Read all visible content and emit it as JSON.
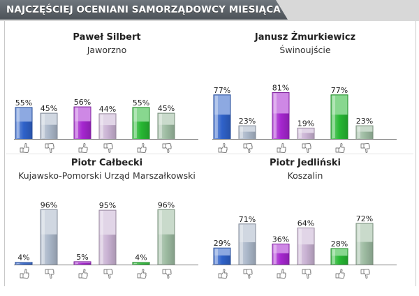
{
  "header": {
    "title": "NAJCZĘŚCIEJ OCENIANI SAMORZĄDOWCY MIESIĄCA"
  },
  "colors": {
    "blue": "#2f62c9",
    "purple": "#a526cf",
    "green": "#27b733",
    "pale_blue": "#aab7c9",
    "pale_purple": "#c9b2d3",
    "pale_green": "#9dbba1"
  },
  "icons": {
    "up": "thumb-up-icon",
    "down": "thumb-down-icon"
  },
  "chart_data": [
    {
      "type": "bar",
      "name": "Paweł Silbert",
      "place": "Jaworzno",
      "ylim": [
        0,
        100
      ],
      "groups": [
        {
          "color": "blue",
          "values": [
            55,
            45
          ]
        },
        {
          "color": "purple",
          "values": [
            56,
            44
          ]
        },
        {
          "color": "green",
          "values": [
            55,
            45
          ]
        }
      ]
    },
    {
      "type": "bar",
      "name": "Janusz Żmurkiewicz",
      "place": "Świnoujście",
      "ylim": [
        0,
        100
      ],
      "groups": [
        {
          "color": "blue",
          "values": [
            77,
            23
          ]
        },
        {
          "color": "purple",
          "values": [
            81,
            19
          ]
        },
        {
          "color": "green",
          "values": [
            77,
            23
          ]
        }
      ]
    },
    {
      "type": "bar",
      "name": "Piotr Całbecki",
      "place": "Kujawsko-Pomorski Urząd Marszałkowski",
      "ylim": [
        0,
        100
      ],
      "groups": [
        {
          "color": "blue",
          "values": [
            4,
            96
          ]
        },
        {
          "color": "purple",
          "values": [
            5,
            95
          ]
        },
        {
          "color": "green",
          "values": [
            4,
            96
          ]
        }
      ]
    },
    {
      "type": "bar",
      "name": "Piotr Jedliński",
      "place": "Koszalin",
      "ylim": [
        0,
        100
      ],
      "groups": [
        {
          "color": "blue",
          "values": [
            29,
            71
          ]
        },
        {
          "color": "purple",
          "values": [
            36,
            64
          ]
        },
        {
          "color": "green",
          "values": [
            28,
            72
          ]
        }
      ]
    }
  ]
}
